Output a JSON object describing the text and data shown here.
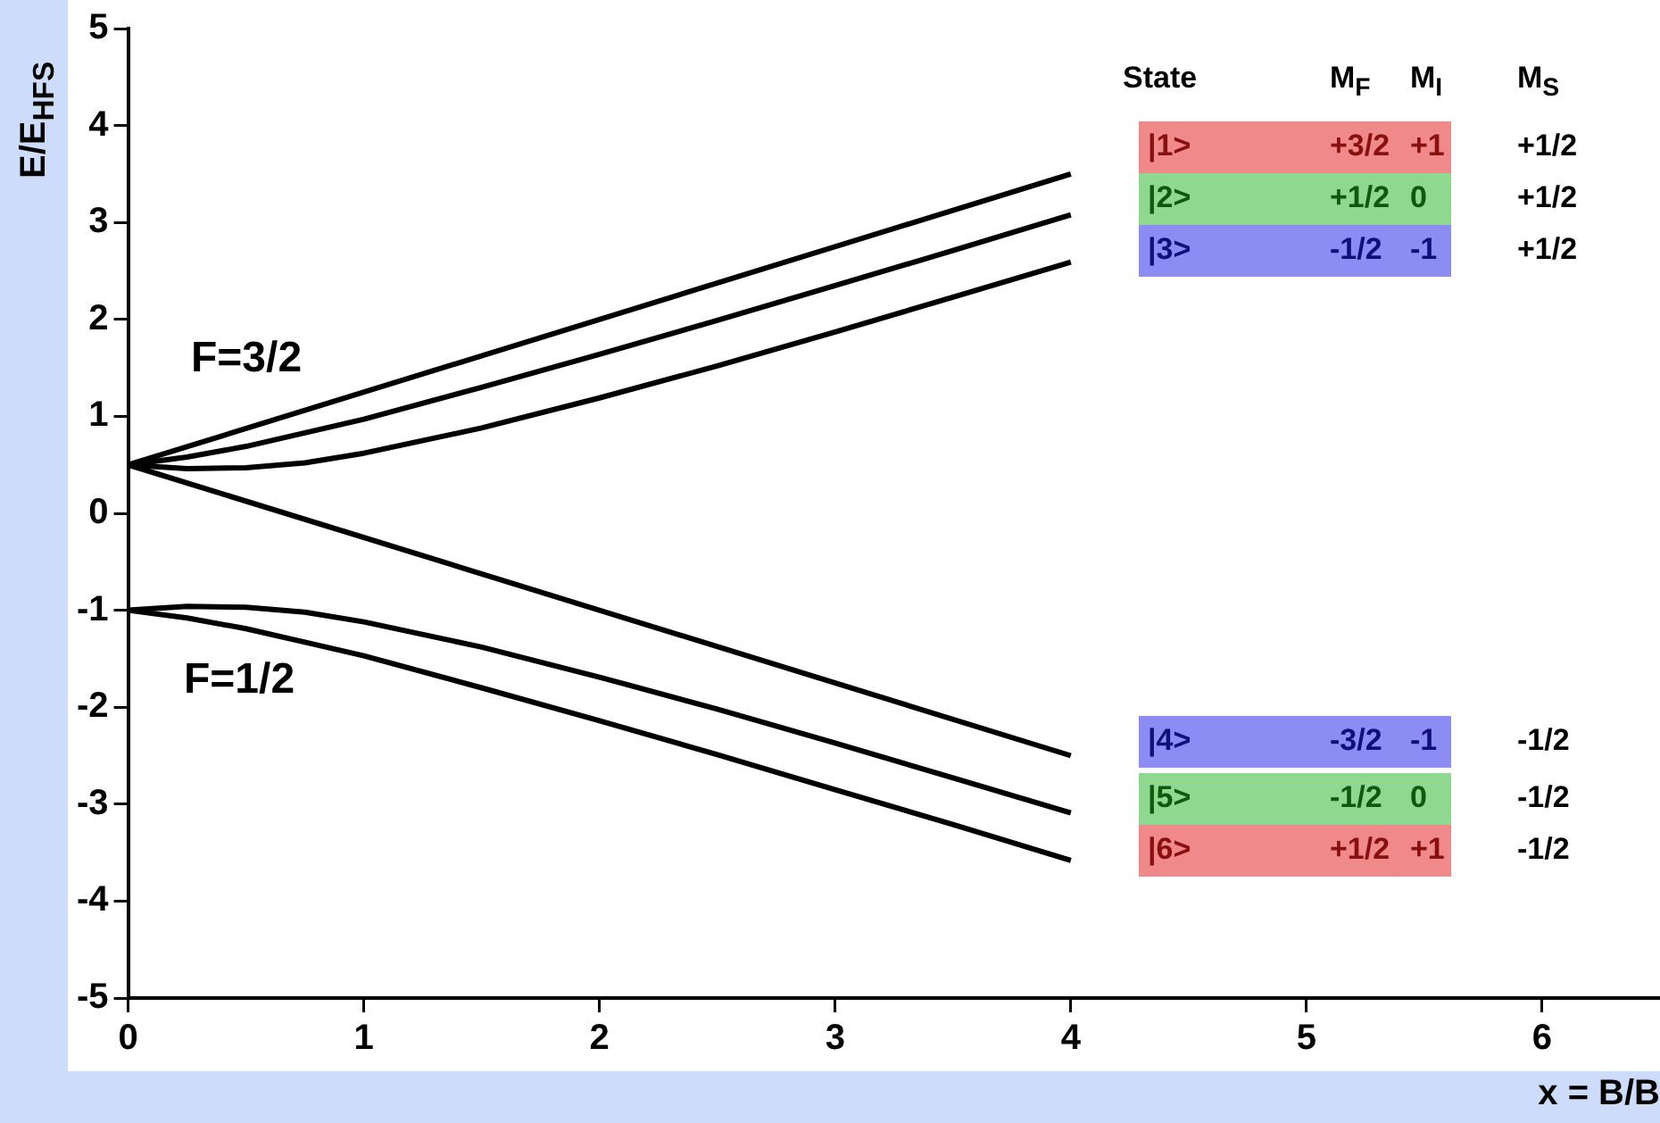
{
  "chart_data": {
    "type": "line",
    "xlabel": "x = B/B",
    "ylabel": "E/E$_{HFS}$",
    "xlim": [
      0,
      6.5
    ],
    "ylim": [
      -5,
      5
    ],
    "xticks": [
      0,
      1,
      2,
      3,
      4,
      5,
      6
    ],
    "yticks": [
      -5,
      -4,
      -3,
      -2,
      -1,
      0,
      1,
      2,
      3,
      4,
      5
    ],
    "grid": false,
    "legend": false,
    "annotations": [
      "F=3/2",
      "F=1/2",
      "State",
      "M$_{F}$",
      "M$_{I}$",
      "M$_{S}$",
      "|1>",
      "+3/2",
      "+1",
      "+1/2",
      "|2>",
      "+1/2",
      "0",
      "+1/2",
      "|3>",
      "-1/2",
      "-1",
      "+1/2",
      "|4>",
      "-3/2",
      "-1",
      "-1/2",
      "|5>",
      "-1/2",
      "0",
      "-1/2",
      "|6>",
      "+1/2",
      "+1",
      "-1/2"
    ],
    "series": [
      {
        "color": "#000000",
        "x": [
          0,
          4
        ],
        "values": [
          0.5,
          3.5
        ]
      },
      {
        "color": "#000000",
        "x": [
          0,
          0.25,
          0.5,
          0.75,
          1,
          1.5,
          2,
          2.5,
          3,
          3.5,
          4
        ],
        "values": [
          0.5,
          0.58,
          0.69,
          0.83,
          0.97,
          1.3,
          1.64,
          1.99,
          2.35,
          2.71,
          3.08
        ]
      },
      {
        "color": "#000000",
        "x": [
          0,
          0.25,
          0.5,
          0.75,
          1,
          1.5,
          2,
          2.5,
          3,
          3.5,
          4
        ],
        "values": [
          0.5,
          0.46,
          0.47,
          0.52,
          0.62,
          0.88,
          1.19,
          1.52,
          1.87,
          2.23,
          2.59
        ]
      },
      {
        "color": "#000000",
        "x": [
          0,
          4
        ],
        "values": [
          0.5,
          -2.5
        ]
      },
      {
        "color": "#000000",
        "x": [
          0,
          0.25,
          0.5,
          0.75,
          1,
          1.5,
          2,
          2.5,
          3,
          3.5,
          4
        ],
        "values": [
          -1,
          -0.96,
          -0.97,
          -1.02,
          -1.12,
          -1.38,
          -1.69,
          -2.02,
          -2.37,
          -2.73,
          -3.09
        ]
      },
      {
        "color": "#000000",
        "x": [
          0,
          0.25,
          0.5,
          0.75,
          1,
          1.5,
          2,
          2.5,
          3,
          3.5,
          4
        ],
        "values": [
          -1,
          -1.08,
          -1.19,
          -1.33,
          -1.47,
          -1.8,
          -2.14,
          -2.49,
          -2.85,
          -3.21,
          -3.58
        ]
      }
    ]
  }
}
